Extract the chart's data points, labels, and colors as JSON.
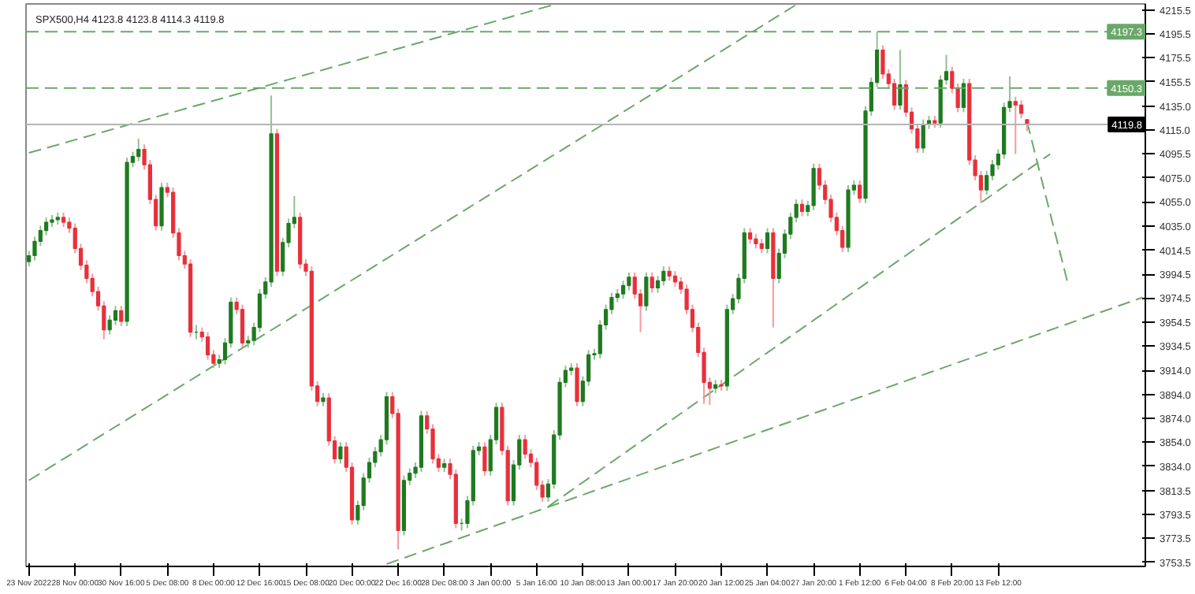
{
  "chart_data": {
    "type": "candlestick",
    "title": "SPX500,H4  4123.8 4123.8 4114.3 4119.8",
    "categories": [
      "23 Nov 2022",
      null,
      null,
      null,
      null,
      null,
      null,
      null,
      "28 Nov 00:00",
      null,
      null,
      null,
      null,
      null,
      null,
      null,
      "30 Nov 16:00",
      null,
      null,
      null,
      null,
      null,
      null,
      null,
      "5 Dec 08:00",
      null,
      null,
      null,
      null,
      null,
      null,
      null,
      "8 Dec 00:00",
      null,
      null,
      null,
      null,
      null,
      null,
      null,
      "12 Dec 16:00",
      null,
      null,
      null,
      null,
      null,
      null,
      null,
      "15 Dec 08:00",
      null,
      null,
      null,
      null,
      null,
      null,
      null,
      "20 Dec 00:00",
      null,
      null,
      null,
      null,
      null,
      null,
      null,
      "22 Dec 16:00",
      null,
      null,
      null,
      null,
      null,
      null,
      null,
      "28 Dec 08:00",
      null,
      null,
      null,
      null,
      null,
      null,
      null,
      "3 Jan 00:00",
      null,
      null,
      null,
      null,
      null,
      null,
      null,
      "5 Jan 16:00",
      null,
      null,
      null,
      null,
      null,
      null,
      null,
      "10 Jan 08:00",
      null,
      null,
      null,
      null,
      null,
      null,
      null,
      "13 Jan 00:00",
      null,
      null,
      null,
      null,
      null,
      null,
      null,
      "17 Jan 20:00",
      null,
      null,
      null,
      null,
      null,
      null,
      null,
      "20 Jan 12:00",
      null,
      null,
      null,
      null,
      null,
      null,
      null,
      "25 Jan 04:00",
      null,
      null,
      null,
      null,
      null,
      null,
      null,
      "27 Jan 20:00",
      null,
      null,
      null,
      null,
      null,
      null,
      null,
      "1 Feb 12:00",
      null,
      null,
      null,
      null,
      null,
      null,
      null,
      "6 Feb 04:00",
      null,
      null,
      null,
      null,
      null,
      null,
      null,
      "8 Feb 20:00",
      null,
      null,
      null,
      null,
      null,
      null,
      null,
      "13 Feb 12:00",
      null,
      null,
      null,
      null,
      null,
      null,
      null,
      null,
      null,
      null,
      null,
      null,
      null,
      null,
      null,
      null,
      null,
      null,
      null,
      null,
      null,
      null,
      null,
      null,
      null
    ],
    "ohlc": [
      [
        4005,
        4014,
        4001,
        4010
      ],
      [
        4010,
        4026,
        4006,
        4022
      ],
      [
        4022,
        4035,
        4018,
        4031
      ],
      [
        4031,
        4042,
        4027,
        4038
      ],
      [
        4038,
        4044,
        4034,
        4040
      ],
      [
        4040,
        4046,
        4036,
        4042
      ],
      [
        4042,
        4046,
        4034,
        4038
      ],
      [
        4038,
        4042,
        4029,
        4033
      ],
      [
        4033,
        4037,
        4012,
        4016
      ],
      [
        4016,
        4020,
        3998,
        4002
      ],
      [
        4002,
        4006,
        3987,
        3991
      ],
      [
        3991,
        3995,
        3976,
        3980
      ],
      [
        3980,
        3984,
        3964,
        3968
      ],
      [
        3968,
        3972,
        3940,
        3948
      ],
      [
        3948,
        3960,
        3944,
        3956
      ],
      [
        3956,
        3968,
        3952,
        3964
      ],
      [
        3964,
        3968,
        3951,
        3955
      ],
      [
        3955,
        4092,
        3951,
        4088
      ],
      [
        4088,
        4097,
        4084,
        4093
      ],
      [
        4093,
        4108,
        4089,
        4099
      ],
      [
        4099,
        4103,
        4082,
        4086
      ],
      [
        4086,
        4090,
        4053,
        4057
      ],
      [
        4057,
        4061,
        4031,
        4035
      ],
      [
        4035,
        4071,
        4031,
        4067
      ],
      [
        4067,
        4071,
        4059,
        4063
      ],
      [
        4063,
        4067,
        4025,
        4029
      ],
      [
        4029,
        4033,
        4006,
        4010
      ],
      [
        4010,
        4014,
        3999,
        4003
      ],
      [
        4003,
        4007,
        3942,
        3946
      ],
      [
        3946,
        3952,
        3940,
        3946
      ],
      [
        3946,
        3950,
        3938,
        3942
      ],
      [
        3942,
        3946,
        3923,
        3927
      ],
      [
        3927,
        3931,
        3916,
        3920
      ],
      [
        3920,
        3927,
        3916,
        3923
      ],
      [
        3923,
        3941,
        3919,
        3937
      ],
      [
        3937,
        3975,
        3933,
        3971
      ],
      [
        3971,
        3975,
        3961,
        3965
      ],
      [
        3965,
        3969,
        3933,
        3937
      ],
      [
        3937,
        3943,
        3933,
        3939
      ],
      [
        3939,
        3954,
        3935,
        3950
      ],
      [
        3950,
        3982,
        3946,
        3978
      ],
      [
        3978,
        3992,
        3974,
        3988
      ],
      [
        3988,
        4144,
        3984,
        4112
      ],
      [
        4112,
        4116,
        3993,
        3997
      ],
      [
        3997,
        4025,
        3993,
        4021
      ],
      [
        4021,
        4041,
        4017,
        4037
      ],
      [
        4037,
        4060,
        4033,
        4042
      ],
      [
        4042,
        4046,
        3999,
        4003
      ],
      [
        4003,
        4007,
        3993,
        3997
      ],
      [
        3997,
        4001,
        3897,
        3901
      ],
      [
        3901,
        3905,
        3884,
        3888
      ],
      [
        3888,
        3895,
        3884,
        3891
      ],
      [
        3891,
        3895,
        3851,
        3855
      ],
      [
        3855,
        3859,
        3836,
        3840
      ],
      [
        3840,
        3854,
        3836,
        3850
      ],
      [
        3850,
        3854,
        3829,
        3833
      ],
      [
        3833,
        3837,
        3785,
        3789
      ],
      [
        3789,
        3805,
        3785,
        3801
      ],
      [
        3801,
        3828,
        3797,
        3824
      ],
      [
        3824,
        3841,
        3820,
        3837
      ],
      [
        3837,
        3850,
        3833,
        3846
      ],
      [
        3846,
        3860,
        3842,
        3856
      ],
      [
        3856,
        3896,
        3852,
        3892
      ],
      [
        3892,
        3896,
        3874,
        3878
      ],
      [
        3878,
        3882,
        3764,
        3780
      ],
      [
        3780,
        3826,
        3776,
        3822
      ],
      [
        3822,
        3832,
        3818,
        3828
      ],
      [
        3828,
        3837,
        3824,
        3833
      ],
      [
        3833,
        3880,
        3829,
        3876
      ],
      [
        3876,
        3880,
        3861,
        3865
      ],
      [
        3865,
        3869,
        3836,
        3840
      ],
      [
        3840,
        3844,
        3829,
        3833
      ],
      [
        3833,
        3840,
        3829,
        3836
      ],
      [
        3836,
        3840,
        3823,
        3827
      ],
      [
        3827,
        3831,
        3782,
        3786
      ],
      [
        3786,
        3790,
        3780,
        3786
      ],
      [
        3786,
        3809,
        3782,
        3805
      ],
      [
        3805,
        3851,
        3801,
        3847
      ],
      [
        3847,
        3854,
        3843,
        3850
      ],
      [
        3850,
        3854,
        3826,
        3830
      ],
      [
        3830,
        3860,
        3826,
        3856
      ],
      [
        3856,
        3887,
        3852,
        3883
      ],
      [
        3883,
        3887,
        3843,
        3847
      ],
      [
        3847,
        3851,
        3801,
        3805
      ],
      [
        3805,
        3839,
        3801,
        3835
      ],
      [
        3835,
        3860,
        3831,
        3856
      ],
      [
        3856,
        3860,
        3840,
        3844
      ],
      [
        3844,
        3848,
        3833,
        3837
      ],
      [
        3837,
        3841,
        3814,
        3818
      ],
      [
        3818,
        3822,
        3804,
        3808
      ],
      [
        3808,
        3823,
        3804,
        3819
      ],
      [
        3819,
        3864,
        3815,
        3860
      ],
      [
        3860,
        3908,
        3856,
        3904
      ],
      [
        3904,
        3918,
        3900,
        3914
      ],
      [
        3914,
        3920,
        3910,
        3916
      ],
      [
        3916,
        3920,
        3884,
        3888
      ],
      [
        3888,
        3909,
        3884,
        3905
      ],
      [
        3905,
        3931,
        3901,
        3927
      ],
      [
        3927,
        3932,
        3923,
        3928
      ],
      [
        3928,
        3956,
        3924,
        3952
      ],
      [
        3952,
        3969,
        3948,
        3965
      ],
      [
        3965,
        3979,
        3961,
        3975
      ],
      [
        3975,
        3982,
        3971,
        3978
      ],
      [
        3978,
        3989,
        3974,
        3985
      ],
      [
        3985,
        3996,
        3981,
        3992
      ],
      [
        3992,
        3996,
        3974,
        3978
      ],
      [
        3978,
        3982,
        3946,
        3968
      ],
      [
        3968,
        3996,
        3964,
        3992
      ],
      [
        3992,
        3996,
        3979,
        3983
      ],
      [
        3983,
        3993,
        3979,
        3989
      ],
      [
        3989,
        4001,
        3985,
        3997
      ],
      [
        3997,
        4001,
        3989,
        3993
      ],
      [
        3993,
        3997,
        3984,
        3988
      ],
      [
        3988,
        3992,
        3978,
        3982
      ],
      [
        3982,
        3986,
        3961,
        3965
      ],
      [
        3965,
        3969,
        3946,
        3950
      ],
      [
        3950,
        3954,
        3925,
        3929
      ],
      [
        3929,
        3933,
        3886,
        3904
      ],
      [
        3904,
        3908,
        3885,
        3899
      ],
      [
        3899,
        3906,
        3895,
        3902
      ],
      [
        3902,
        3906,
        3897,
        3901
      ],
      [
        3901,
        3969,
        3897,
        3965
      ],
      [
        3965,
        3978,
        3961,
        3974
      ],
      [
        3974,
        3995,
        3970,
        3991
      ],
      [
        3991,
        4033,
        3987,
        4029
      ],
      [
        4029,
        4033,
        4020,
        4024
      ],
      [
        4024,
        4028,
        4016,
        4020
      ],
      [
        4020,
        4024,
        4012,
        4016
      ],
      [
        4016,
        4033,
        4012,
        4029
      ],
      [
        4029,
        4033,
        3950,
        3991
      ],
      [
        3991,
        4016,
        3987,
        4012
      ],
      [
        4012,
        4032,
        4008,
        4028
      ],
      [
        4028,
        4046,
        4024,
        4042
      ],
      [
        4042,
        4057,
        4038,
        4053
      ],
      [
        4053,
        4057,
        4043,
        4047
      ],
      [
        4047,
        4056,
        4043,
        4052
      ],
      [
        4052,
        4087,
        4048,
        4083
      ],
      [
        4083,
        4087,
        4065,
        4069
      ],
      [
        4069,
        4073,
        4053,
        4057
      ],
      [
        4057,
        4061,
        4038,
        4042
      ],
      [
        4042,
        4046,
        4027,
        4031
      ],
      [
        4031,
        4035,
        4013,
        4017
      ],
      [
        4017,
        4069,
        4013,
        4065
      ],
      [
        4065,
        4073,
        4061,
        4069
      ],
      [
        4069,
        4073,
        4054,
        4058
      ],
      [
        4058,
        4135,
        4054,
        4131
      ],
      [
        4131,
        4159,
        4127,
        4155
      ],
      [
        4155,
        4197.3,
        4151,
        4182
      ],
      [
        4182,
        4186,
        4158,
        4162
      ],
      [
        4162,
        4166,
        4150,
        4154
      ],
      [
        4154,
        4158,
        4132,
        4136
      ],
      [
        4136,
        4182,
        4132,
        4153
      ],
      [
        4153,
        4157,
        4126,
        4130
      ],
      [
        4130,
        4134,
        4112,
        4116
      ],
      [
        4116,
        4120,
        4096,
        4100
      ],
      [
        4100,
        4124,
        4096,
        4120
      ],
      [
        4120,
        4127,
        4116,
        4123
      ],
      [
        4123,
        4127,
        4117,
        4121
      ],
      [
        4121,
        4161,
        4117,
        4157
      ],
      [
        4157,
        4178,
        4153,
        4164
      ],
      [
        4164,
        4168,
        4146,
        4150
      ],
      [
        4150,
        4154,
        4130,
        4134
      ],
      [
        4134,
        4158,
        4130,
        4154
      ],
      [
        4154,
        4158,
        4086,
        4090
      ],
      [
        4090,
        4094,
        4073,
        4077
      ],
      [
        4077,
        4081,
        4054,
        4065
      ],
      [
        4065,
        4081,
        4061,
        4077
      ],
      [
        4077,
        4090,
        4073,
        4086
      ],
      [
        4086,
        4099,
        4082,
        4095
      ],
      [
        4095,
        4138,
        4091,
        4134
      ],
      [
        4134,
        4160,
        4130,
        4139
      ],
      [
        4139,
        4143,
        4095,
        4136
      ],
      [
        4136,
        4140,
        4125,
        4129
      ],
      [
        4123.8,
        4123.8,
        4114.3,
        4119.8
      ],
      null,
      null,
      null,
      null,
      null,
      null,
      null,
      null,
      null,
      null,
      null,
      null,
      null,
      null,
      null,
      null,
      null,
      null,
      null,
      null
    ],
    "series": [
      {
        "type": "line",
        "color": "#6aa86a",
        "line_style": "dashed",
        "values": [
          4096,
          null,
          null,
          null,
          null,
          null,
          null,
          null,
          null,
          null,
          null,
          null,
          null,
          null,
          null,
          null,
          null,
          null,
          null,
          null,
          null,
          null,
          null,
          null,
          null,
          null,
          null,
          null,
          null,
          null,
          null,
          null,
          null,
          null,
          null,
          null,
          null,
          null,
          null,
          null,
          null,
          null,
          null,
          null,
          null,
          null,
          null,
          null,
          null,
          null,
          null,
          null,
          null,
          null,
          null,
          null,
          null,
          null,
          null,
          null,
          null,
          null,
          null,
          null,
          null,
          null,
          null,
          null,
          null,
          null,
          null,
          null,
          null,
          null,
          null,
          null,
          null,
          null,
          null,
          null,
          null,
          null,
          null,
          null,
          null,
          null,
          null,
          null,
          null,
          null,
          null,
          4220,
          null,
          null,
          null,
          null,
          null,
          null,
          null,
          null,
          null,
          null,
          null,
          null,
          null,
          null,
          null,
          null,
          null,
          null,
          null,
          null,
          null,
          null,
          null,
          null,
          null,
          null,
          null,
          null,
          null,
          null,
          null,
          null,
          null,
          null,
          null,
          null,
          null,
          null,
          null,
          null,
          null,
          null,
          null,
          null,
          null,
          null,
          null,
          null,
          null,
          null,
          null,
          null,
          null,
          null,
          null,
          null,
          null,
          null,
          null,
          null,
          null,
          null,
          null,
          null,
          null,
          null,
          null,
          null,
          null,
          null,
          null,
          null,
          null,
          null,
          null,
          null,
          null,
          null,
          null,
          null,
          null,
          null,
          null,
          null,
          null,
          null,
          null,
          null,
          null,
          null,
          null,
          null,
          null,
          null,
          null,
          null,
          null,
          null,
          null,
          null,
          null,
          null
        ]
      },
      {
        "type": "line",
        "color": "#6aa86a",
        "line_style": "dashed",
        "values": [
          3822,
          null,
          null,
          null,
          null,
          null,
          null,
          null,
          null,
          null,
          null,
          null,
          null,
          null,
          null,
          null,
          null,
          null,
          null,
          null,
          null,
          null,
          null,
          null,
          null,
          null,
          null,
          null,
          null,
          null,
          null,
          null,
          null,
          null,
          null,
          null,
          null,
          null,
          null,
          null,
          null,
          null,
          null,
          null,
          null,
          null,
          null,
          null,
          null,
          null,
          null,
          null,
          null,
          null,
          null,
          null,
          null,
          null,
          null,
          null,
          null,
          null,
          null,
          null,
          null,
          null,
          null,
          null,
          null,
          null,
          null,
          null,
          null,
          null,
          null,
          null,
          null,
          null,
          null,
          null,
          null,
          null,
          null,
          null,
          null,
          null,
          null,
          null,
          null,
          null,
          null,
          null,
          null,
          null,
          null,
          null,
          null,
          null,
          null,
          null,
          null,
          null,
          null,
          null,
          null,
          null,
          null,
          null,
          null,
          null,
          null,
          null,
          null,
          null,
          null,
          null,
          null,
          null,
          null,
          null,
          null,
          null,
          null,
          null,
          null,
          null,
          null,
          null,
          null,
          null,
          null,
          null,
          null,
          4220,
          null,
          null,
          null,
          null,
          null,
          null,
          null,
          null,
          null,
          null,
          null,
          null,
          null,
          null,
          null,
          null,
          null,
          null,
          null,
          null,
          null,
          null,
          null,
          null,
          null,
          null,
          null,
          null,
          null,
          null,
          null,
          null,
          null,
          null,
          null,
          null,
          null,
          null,
          null,
          null,
          null,
          null,
          null,
          null,
          null,
          null,
          null,
          null,
          null,
          null,
          null,
          null,
          null,
          null,
          null,
          null,
          null,
          null,
          null,
          null
        ]
      },
      {
        "type": "line",
        "color": "#6aa86a",
        "line_style": "dashed",
        "values": [
          null,
          null,
          null,
          null,
          null,
          null,
          null,
          null,
          null,
          null,
          null,
          null,
          null,
          null,
          null,
          null,
          null,
          null,
          null,
          null,
          null,
          null,
          null,
          null,
          null,
          null,
          null,
          null,
          null,
          null,
          null,
          null,
          null,
          null,
          null,
          null,
          null,
          null,
          null,
          null,
          null,
          null,
          null,
          null,
          null,
          null,
          null,
          null,
          null,
          null,
          null,
          null,
          null,
          null,
          null,
          null,
          null,
          null,
          null,
          null,
          null,
          null,
          3752,
          null,
          null,
          null,
          null,
          null,
          null,
          null,
          null,
          null,
          null,
          null,
          null,
          null,
          null,
          null,
          null,
          null,
          null,
          null,
          null,
          null,
          null,
          null,
          null,
          null,
          null,
          null,
          null,
          null,
          null,
          null,
          null,
          null,
          null,
          null,
          null,
          null,
          null,
          null,
          null,
          null,
          null,
          null,
          null,
          null,
          null,
          null,
          null,
          null,
          null,
          null,
          null,
          null,
          null,
          null,
          null,
          null,
          null,
          null,
          null,
          null,
          null,
          null,
          null,
          null,
          null,
          null,
          null,
          null,
          null,
          null,
          null,
          null,
          null,
          null,
          null,
          null,
          null,
          null,
          null,
          null,
          null,
          null,
          null,
          null,
          null,
          null,
          null,
          null,
          null,
          null,
          null,
          null,
          null,
          null,
          null,
          null,
          null,
          null,
          null,
          null,
          null,
          null,
          null,
          null,
          null,
          null,
          null,
          null,
          null,
          null,
          null,
          null,
          null,
          null,
          null,
          null,
          null,
          null,
          null,
          null,
          null,
          null,
          null,
          null,
          null,
          null,
          null,
          null,
          null,
          3975
        ]
      },
      {
        "type": "line",
        "color": "#6aa86a",
        "line_style": "dashed",
        "values": [
          null,
          null,
          null,
          null,
          null,
          null,
          null,
          null,
          null,
          null,
          null,
          null,
          null,
          null,
          null,
          null,
          null,
          null,
          null,
          null,
          null,
          null,
          null,
          null,
          null,
          null,
          null,
          null,
          null,
          null,
          null,
          null,
          null,
          null,
          null,
          null,
          null,
          null,
          null,
          null,
          null,
          null,
          null,
          null,
          null,
          null,
          null,
          null,
          null,
          null,
          null,
          null,
          null,
          null,
          null,
          null,
          null,
          null,
          null,
          null,
          null,
          null,
          null,
          null,
          null,
          null,
          null,
          null,
          null,
          null,
          null,
          null,
          null,
          null,
          null,
          null,
          null,
          null,
          null,
          null,
          null,
          null,
          null,
          null,
          null,
          null,
          null,
          null,
          null,
          null,
          3800,
          null,
          null,
          null,
          null,
          null,
          null,
          null,
          null,
          null,
          null,
          null,
          null,
          null,
          null,
          null,
          null,
          null,
          null,
          null,
          null,
          null,
          null,
          null,
          null,
          null,
          null,
          null,
          null,
          null,
          null,
          null,
          null,
          null,
          null,
          null,
          null,
          null,
          null,
          null,
          null,
          null,
          null,
          null,
          null,
          null,
          null,
          null,
          null,
          null,
          null,
          null,
          null,
          null,
          null,
          null,
          null,
          null,
          null,
          null,
          null,
          null,
          null,
          null,
          null,
          null,
          null,
          null,
          null,
          null,
          null,
          null,
          null,
          null,
          null,
          null,
          null,
          null,
          null,
          null,
          null,
          null,
          null,
          null,
          null,
          null,
          null,
          4095,
          null,
          null,
          null,
          null,
          null,
          null,
          null,
          null,
          null,
          null,
          null,
          null,
          null,
          null,
          null,
          null
        ]
      },
      {
        "type": "line",
        "color": "#6aa86a",
        "line_style": "dashed",
        "values": [
          null,
          null,
          null,
          null,
          null,
          null,
          null,
          null,
          null,
          null,
          null,
          null,
          null,
          null,
          null,
          null,
          null,
          null,
          null,
          null,
          null,
          null,
          null,
          null,
          null,
          null,
          null,
          null,
          null,
          null,
          null,
          null,
          null,
          null,
          null,
          null,
          null,
          null,
          null,
          null,
          null,
          null,
          null,
          null,
          null,
          null,
          null,
          null,
          null,
          null,
          null,
          null,
          null,
          null,
          null,
          null,
          null,
          null,
          null,
          null,
          null,
          null,
          null,
          null,
          null,
          null,
          null,
          null,
          null,
          null,
          null,
          null,
          null,
          null,
          null,
          null,
          null,
          null,
          null,
          null,
          null,
          null,
          null,
          null,
          null,
          null,
          null,
          null,
          null,
          null,
          null,
          null,
          null,
          null,
          null,
          null,
          null,
          null,
          null,
          null,
          null,
          null,
          null,
          null,
          null,
          null,
          null,
          null,
          null,
          null,
          null,
          null,
          null,
          null,
          null,
          null,
          null,
          null,
          null,
          null,
          null,
          null,
          null,
          null,
          null,
          null,
          null,
          null,
          null,
          null,
          null,
          null,
          null,
          null,
          null,
          null,
          null,
          null,
          null,
          null,
          null,
          null,
          null,
          null,
          null,
          null,
          null,
          null,
          null,
          null,
          null,
          null,
          null,
          null,
          null,
          null,
          null,
          null,
          null,
          null,
          null,
          null,
          null,
          null,
          null,
          null,
          null,
          null,
          null,
          null,
          null,
          null,
          null,
          4122,
          null,
          null,
          null,
          null,
          null,
          null,
          3988,
          null,
          null,
          null,
          null,
          null,
          null,
          null,
          null,
          null,
          null,
          null,
          null,
          null
        ]
      }
    ],
    "ref_lines": [
      {
        "axis": "y",
        "value": 4197.3,
        "label": "4197.3",
        "color": "#6aa86a",
        "line_style": "dashed"
      },
      {
        "axis": "y",
        "value": 4150.3,
        "label": "4150.3",
        "color": "#6aa86a",
        "line_style": "dashed"
      },
      {
        "axis": "y",
        "value": 4119.8,
        "label": "4119.8",
        "color": "#b4b4b4",
        "line_style": "solid"
      }
    ],
    "ylim": [
      3750,
      4220.6
    ],
    "yticks": [
      {
        "value": 4215.5,
        "label": "4215.5"
      },
      {
        "value": 4195.5,
        "label": "4195.5"
      },
      {
        "value": 4175.5,
        "label": "4175.5"
      },
      {
        "value": 4155.5,
        "label": "4155.5"
      },
      {
        "value": 4135,
        "label": "4135.0"
      },
      {
        "value": 4115,
        "label": "4115.0"
      },
      {
        "value": 4095.5,
        "label": "4095.5"
      },
      {
        "value": 4075,
        "label": "4075.0"
      },
      {
        "value": 4055,
        "label": "4055.0"
      },
      {
        "value": 4035,
        "label": "4035.0"
      },
      {
        "value": 4014.5,
        "label": "4014.5"
      },
      {
        "value": 3994.5,
        "label": "3994.5"
      },
      {
        "value": 3974.5,
        "label": "3974.5"
      },
      {
        "value": 3954.5,
        "label": "3954.5"
      },
      {
        "value": 3934.5,
        "label": "3934.5"
      },
      {
        "value": 3914,
        "label": "3914.0"
      },
      {
        "value": 3894,
        "label": "3894.0"
      },
      {
        "value": 3874,
        "label": "3874.0"
      },
      {
        "value": 3854,
        "label": "3854.0"
      },
      {
        "value": 3834,
        "label": "3834.0"
      },
      {
        "value": 3813.5,
        "label": "3813.5"
      },
      {
        "value": 3793.5,
        "label": "3793.5"
      },
      {
        "value": 3773.5,
        "label": "3773.5"
      },
      {
        "value": 3753.5,
        "label": "3753.5"
      }
    ],
    "grid": false
  }
}
